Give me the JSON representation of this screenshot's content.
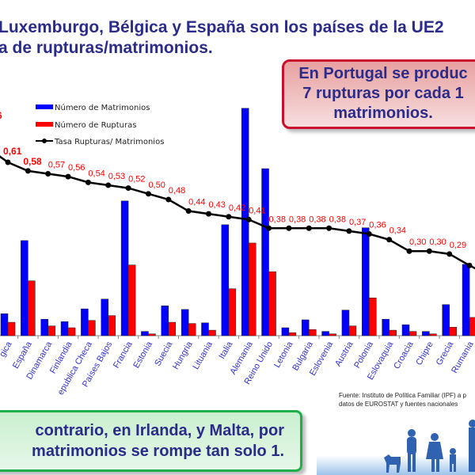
{
  "title": {
    "line1": "Luxemburgo, Bélgica y España son los países de la UE2",
    "line2": "a de rupturas/matrimonios."
  },
  "callout_portugal": {
    "line1": "En Portugal se produc",
    "line2": "7 rupturas por cada 1",
    "line3": "matrimonios."
  },
  "callout_irlanda": {
    "line1": "contrario, en Irlanda, y Malta, por",
    "line2": "matrimonios se rompe tan solo 1."
  },
  "source": {
    "line1": "Fuente: Instituto de Política Familiar (IPF) a p",
    "line2": "datos de EUROSTAT y fuentes nacionales"
  },
  "colors": {
    "marriages": "#0000ff",
    "ruptures": "#ff0000",
    "rate_line": "#000000",
    "rate_label": "#ff0000",
    "category_label": "#3333cc",
    "title": "#2b2b8a"
  },
  "chart_data": {
    "type": "bar",
    "title": "",
    "xlabel": "",
    "ylabel": "",
    "grid": false,
    "legend_position": "top-left",
    "units_note": "bar values estimated (thousands, approx.)",
    "ylim": [
      0,
      400
    ],
    "rate_ylim": [
      0.2,
      0.8
    ],
    "partial_left_label": "6",
    "categories": [
      "gica",
      "España",
      "Dinamarca",
      "Finlandia",
      "epublica Checa",
      "Países Bajos",
      "Francia",
      "Estonia",
      "Suecia",
      "Hungria",
      "Lituania",
      "Italia",
      "Alemania",
      "Reino Unido",
      "Letonia",
      "Bulgaria",
      "Eslovenia",
      "Austria",
      "Polonia",
      "Eslovaquia",
      "Croacia",
      "Chipre",
      "Grecia",
      "Rumania"
    ],
    "series": [
      {
        "name": "Número de Matrimonios",
        "type": "bar",
        "values": [
          36,
          156,
          27,
          23,
          44,
          60,
          221,
          7,
          49,
          43,
          21,
          182,
          373,
          274,
          13,
          26,
          7,
          42,
          177,
          27,
          18,
          7,
          51,
          117
        ]
      },
      {
        "name": "Número de Rupturas",
        "type": "bar",
        "values": [
          22,
          90,
          16,
          13,
          25,
          33,
          116,
          3,
          22,
          20,
          9,
          77,
          152,
          105,
          5,
          10,
          3,
          16,
          62,
          9,
          7,
          3,
          14,
          30
        ]
      },
      {
        "name": "Tasa Rupturas/ Matrimonios",
        "type": "line",
        "values": [
          0.61,
          0.58,
          0.57,
          0.56,
          0.54,
          0.53,
          0.52,
          0.5,
          0.48,
          0.44,
          0.43,
          0.42,
          0.41,
          0.38,
          0.38,
          0.38,
          0.38,
          0.37,
          0.36,
          0.34,
          0.3,
          0.3,
          0.29,
          0.25
        ],
        "labels": [
          "0,61",
          "0,58",
          "0,57",
          "0,56",
          "0,54",
          "0,53",
          "0,52",
          "0,50",
          "0,48",
          "0,44",
          "0,43",
          "0,42",
          "0,41",
          "0,38",
          "0,38",
          "0,38",
          "0,38",
          "0,37",
          "0,36",
          "0,34",
          "0,30",
          "0,30",
          "0,29",
          ""
        ]
      }
    ]
  }
}
